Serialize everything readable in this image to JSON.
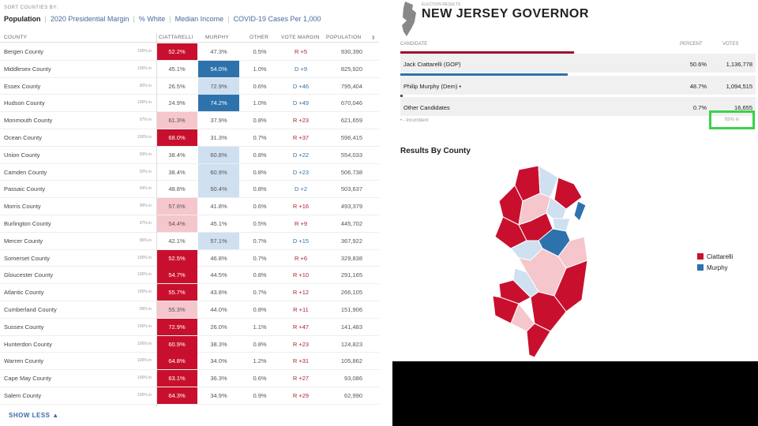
{
  "sort": {
    "label": "SORT COUNTIES BY:",
    "options": [
      "Population",
      "2020 Presidential Margin",
      "% White",
      "Median Income",
      "COVID-19 Cases Per 1,000"
    ]
  },
  "table": {
    "headers": [
      "COUNTY",
      "CIATTARELLI",
      "MURPHY",
      "OTHER",
      "VOTE MARGIN",
      "POPULATION"
    ],
    "rows": [
      [
        "Bergen County",
        "100% in",
        "52.2%",
        "47.3%",
        "0.5%",
        "R +5",
        "930,390",
        "dr",
        ""
      ],
      [
        "Middlesex County",
        "100% in",
        "45.1%",
        "54.0%",
        "1.0%",
        "D +9",
        "825,920",
        "",
        "db"
      ],
      [
        "Essex County",
        "90% in",
        "26.5%",
        "72.9%",
        "0.6%",
        "D +46",
        "795,404",
        "",
        "lb"
      ],
      [
        "Hudson County",
        "100% in",
        "24.9%",
        "74.2%",
        "1.0%",
        "D +49",
        "670,046",
        "",
        "db"
      ],
      [
        "Monmouth County",
        "97% in",
        "61.3%",
        "37.9%",
        "0.8%",
        "R +23",
        "621,659",
        "lr",
        ""
      ],
      [
        "Ocean County",
        "100% in",
        "68.0%",
        "31.3%",
        "0.7%",
        "R +37",
        "596,415",
        "dr",
        ""
      ],
      [
        "Union County",
        "93% in",
        "38.4%",
        "60.8%",
        "0.8%",
        "D +22",
        "554,033",
        "",
        "lb"
      ],
      [
        "Camden County",
        "92% in",
        "38.4%",
        "60.9%",
        "0.8%",
        "D +23",
        "506,738",
        "",
        "lb"
      ],
      [
        "Passaic County",
        "94% in",
        "48.8%",
        "50.4%",
        "0.8%",
        "D +2",
        "503,637",
        "",
        "lb"
      ],
      [
        "Morris County",
        "99% in",
        "57.6%",
        "41.8%",
        "0.6%",
        "R +16",
        "493,379",
        "lr",
        ""
      ],
      [
        "Burlington County",
        "97% in",
        "54.4%",
        "45.1%",
        "0.5%",
        "R +9",
        "445,702",
        "lr",
        ""
      ],
      [
        "Mercer County",
        "96% in",
        "42.1%",
        "57.1%",
        "0.7%",
        "D +15",
        "367,922",
        "",
        "lb"
      ],
      [
        "Somerset County",
        "100% in",
        "52.5%",
        "46.8%",
        "0.7%",
        "R +6",
        "329,838",
        "dr",
        ""
      ],
      [
        "Gloucester County",
        "100% in",
        "54.7%",
        "44.5%",
        "0.8%",
        "R +10",
        "291,165",
        "dr",
        ""
      ],
      [
        "Atlantic County",
        "100% in",
        "55.7%",
        "43.8%",
        "0.7%",
        "R +12",
        "266,105",
        "dr",
        ""
      ],
      [
        "Cumberland County",
        "99% in",
        "55.3%",
        "44.0%",
        "0.8%",
        "R +11",
        "151,906",
        "lr",
        ""
      ],
      [
        "Sussex County",
        "100% in",
        "72.9%",
        "26.0%",
        "1.1%",
        "R +47",
        "141,483",
        "dr",
        ""
      ],
      [
        "Hunterdon County",
        "100% in",
        "60.9%",
        "38.3%",
        "0.8%",
        "R +23",
        "124,823",
        "dr",
        ""
      ],
      [
        "Warren County",
        "100% in",
        "64.8%",
        "34.0%",
        "1.2%",
        "R +31",
        "105,862",
        "dr",
        ""
      ],
      [
        "Cape May County",
        "100% in",
        "63.1%",
        "36.3%",
        "0.6%",
        "R +27",
        "93,086",
        "dr",
        ""
      ],
      [
        "Salem County",
        "100% in",
        "64.3%",
        "34.9%",
        "0.9%",
        "R +29",
        "62,990",
        "dr",
        ""
      ]
    ]
  },
  "show_less": "SHOW LESS ▲",
  "results": {
    "kicker": "ELECTION RESULTS",
    "title": "NEW JERSEY GOVERNOR",
    "headers": [
      "CANDIDATE",
      "PERCENT",
      "VOTES"
    ],
    "candidates": [
      {
        "name": "Jack Ciattarelli (GOP)",
        "percent": "50.6%",
        "votes": "1,136,778",
        "share": 50.6,
        "color": "#a0102e"
      },
      {
        "name": "Philip Murphy (Dem) •",
        "percent": "48.7%",
        "votes": "1,094,515",
        "share": 48.7,
        "color": "#2e72ad"
      },
      {
        "name": "Other Candidates",
        "percent": "0.7%",
        "votes": "16,655",
        "share": 0.7,
        "color": "#555"
      }
    ],
    "incumbent_note": "• - Incumbent",
    "precincts": "93% in",
    "map_title": "Results By County",
    "legend": [
      "Ciattarelli",
      "Murphy"
    ]
  },
  "colors": {
    "rep_dark": "#c8102e",
    "rep_light": "#f5c6cc",
    "dem_dark": "#2e72ad",
    "dem_light": "#cfe0f0"
  }
}
